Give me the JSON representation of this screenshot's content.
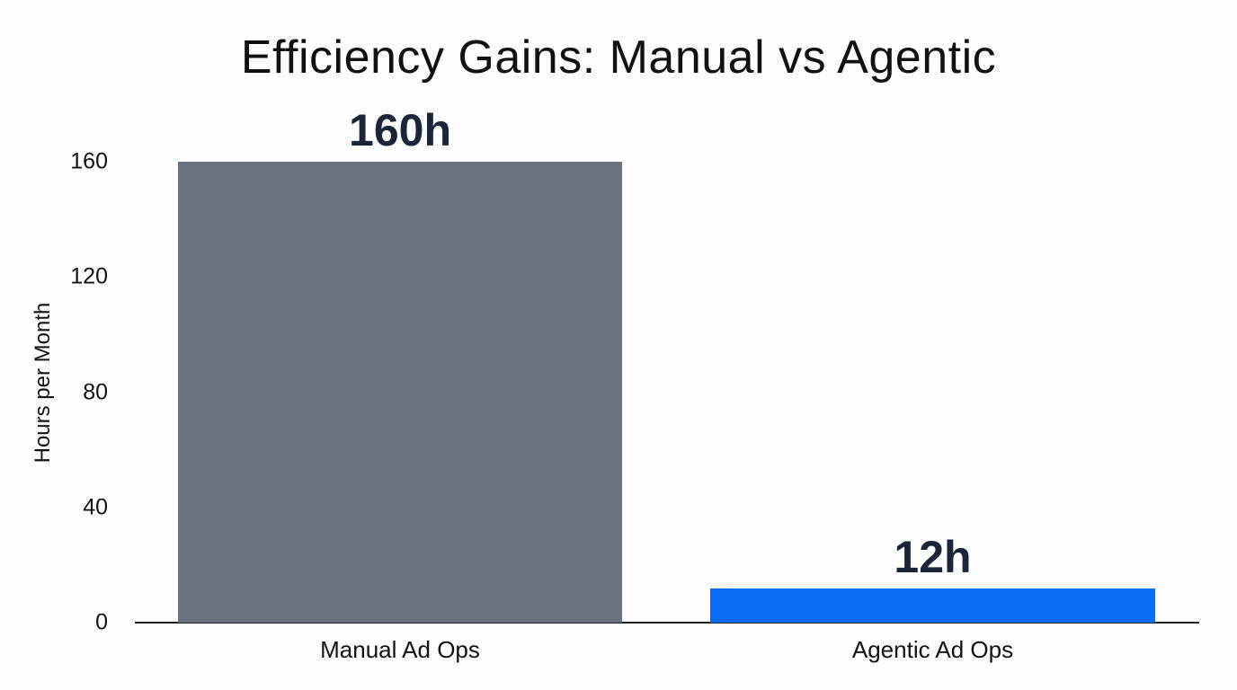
{
  "chart_data": {
    "type": "bar",
    "title": "Efficiency Gains: Manual vs Agentic",
    "xlabel": "",
    "ylabel": "Hours per Month",
    "categories": [
      "Manual Ad Ops",
      "Agentic Ad Ops"
    ],
    "values": [
      160,
      12
    ],
    "data_labels": [
      "160h",
      "12h"
    ],
    "colors": [
      "#6b7280",
      "#0a6ef5"
    ],
    "ylim": [
      0,
      160
    ],
    "yticks": [
      0,
      40,
      80,
      120,
      160
    ],
    "grid": false,
    "legend": null
  }
}
